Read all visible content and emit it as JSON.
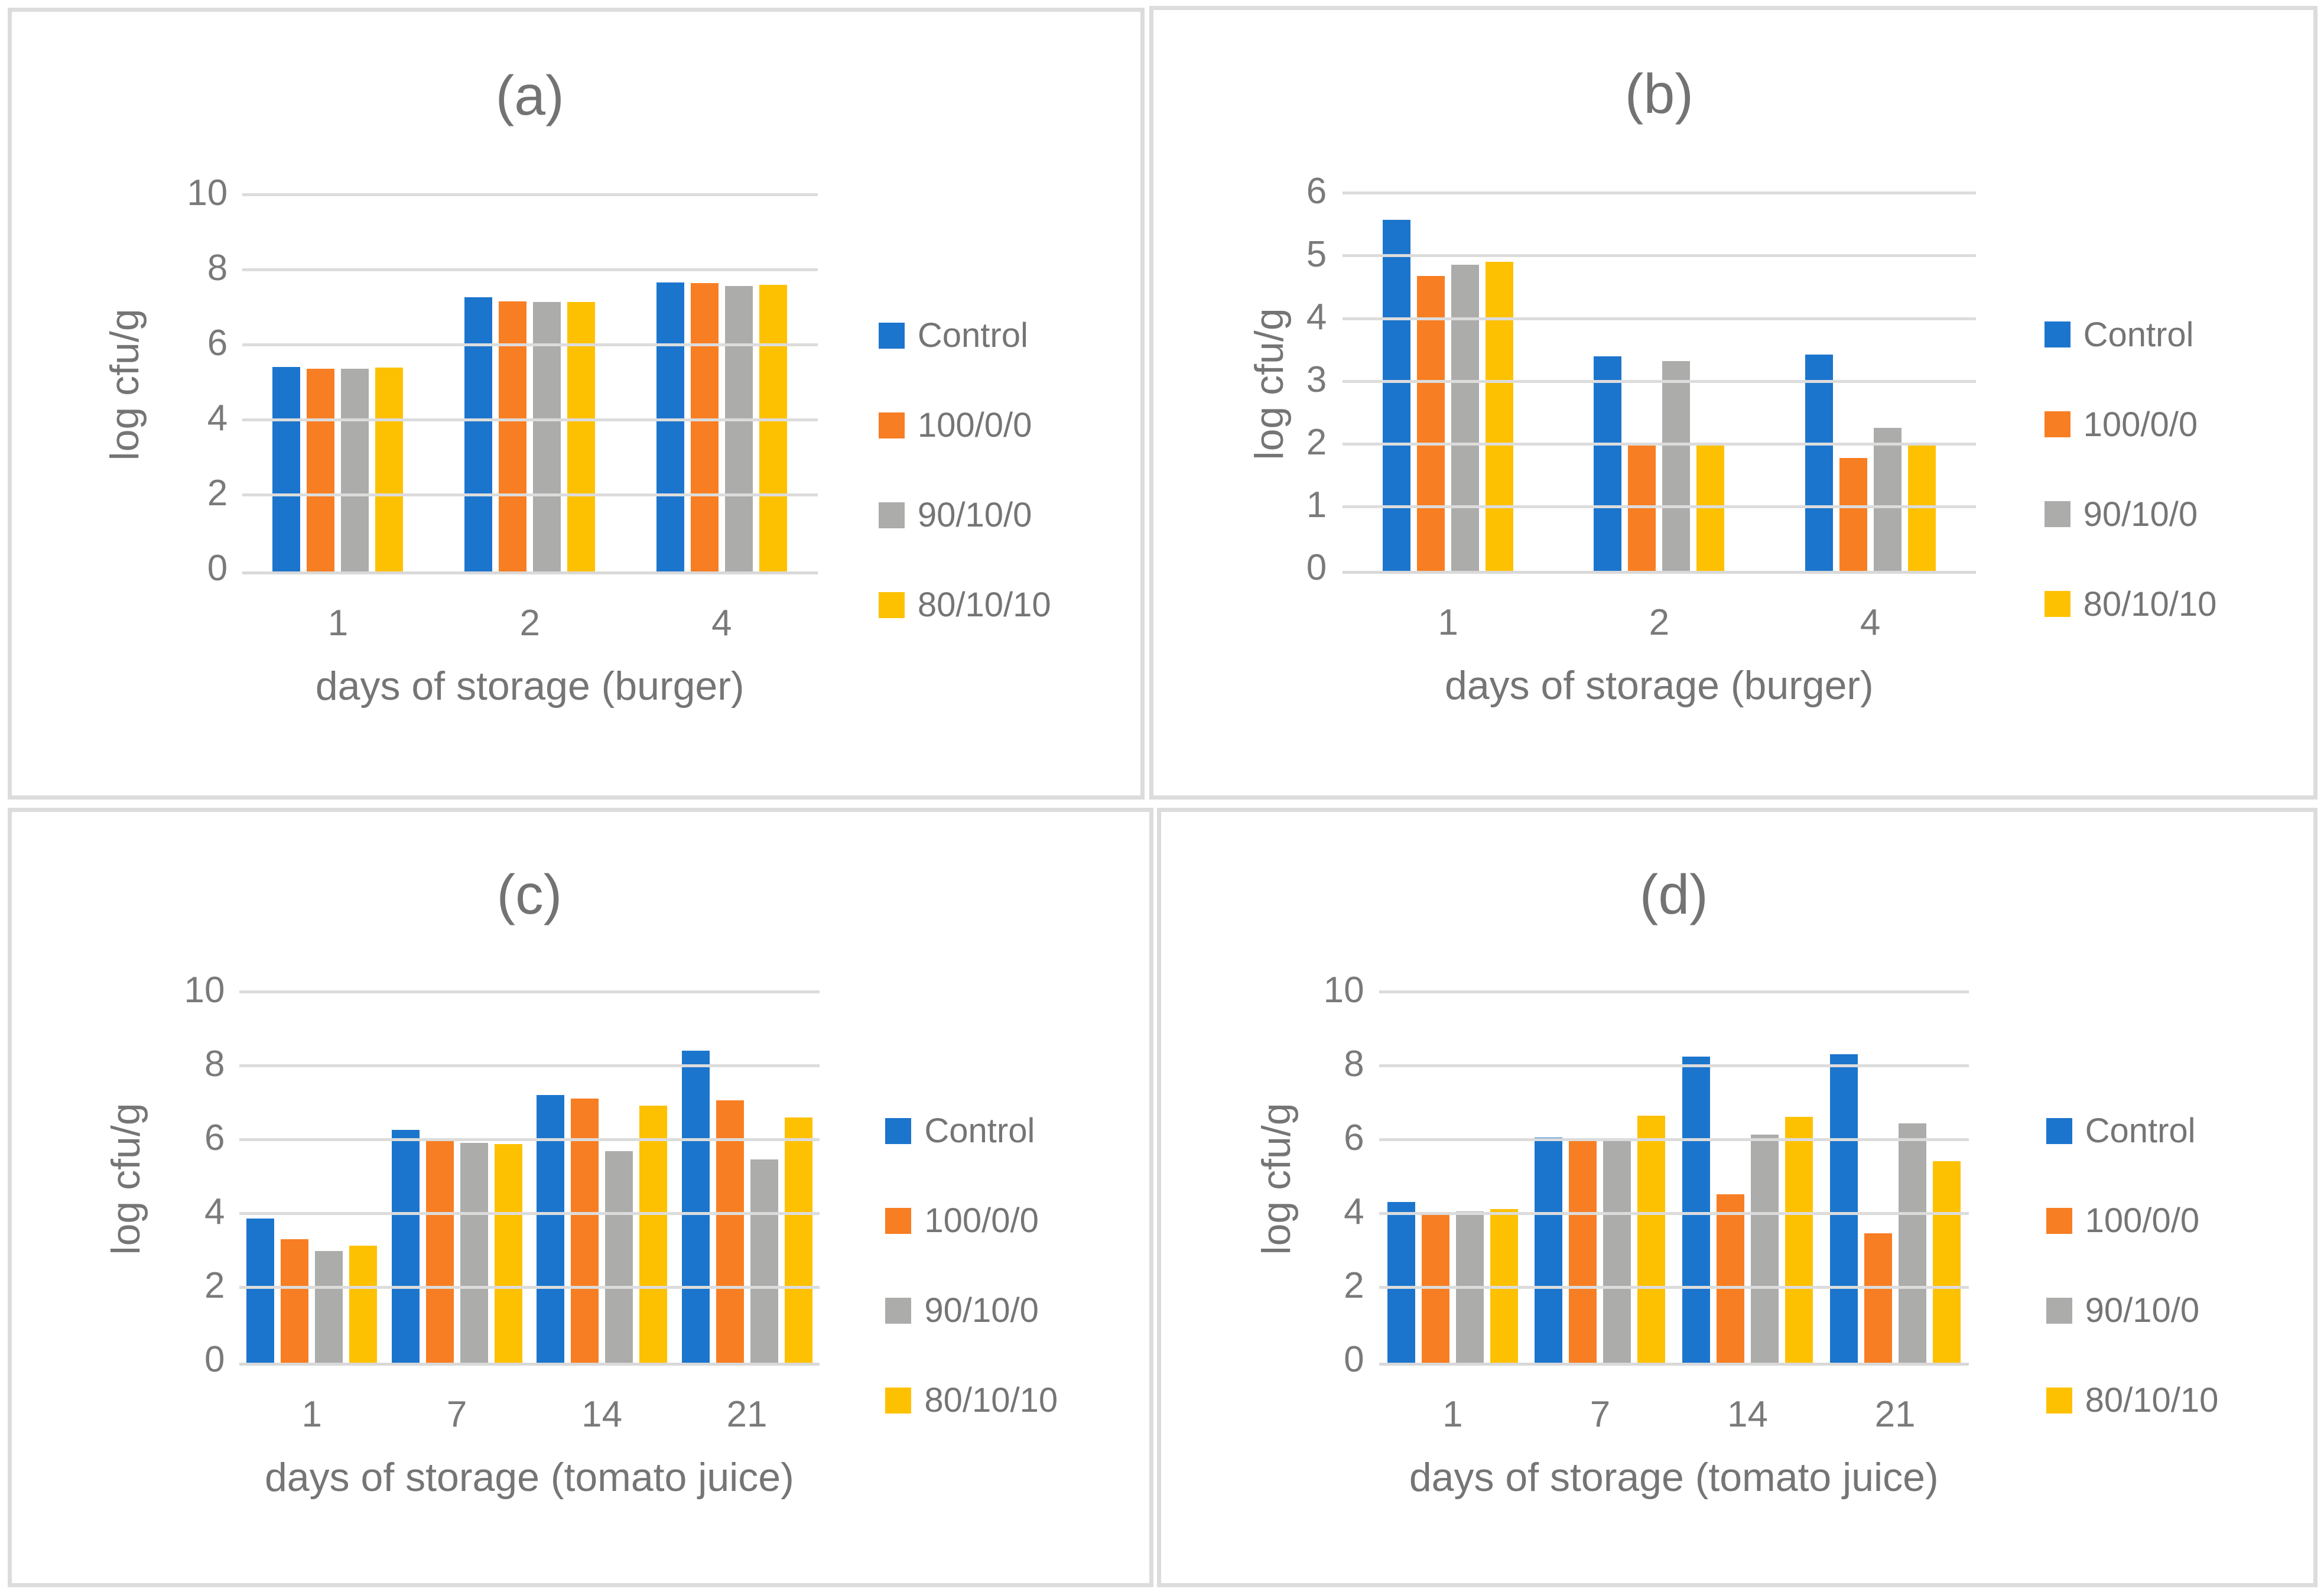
{
  "style": {
    "series_colors": {
      "control": "#1C75CD",
      "c100": "#F87E23",
      "c90": "#ACACAC",
      "c80": "#FEC101"
    },
    "gridline_color": "#DCDCDC",
    "panel_border_color": "#DCDCDC",
    "text_color": "#757575"
  },
  "chart_data": [
    {
      "type": "bar",
      "title": "(a)",
      "xlabel": "days of storage (burger)",
      "ylabel": "log cfu/g",
      "ylim": [
        0,
        10
      ],
      "ytick_step": 2,
      "grid": true,
      "legend_position": "right",
      "categories": [
        "1",
        "2",
        "4"
      ],
      "series": [
        {
          "name": "Control",
          "color": "#1C75CD",
          "values": [
            5.45,
            7.3,
            7.7
          ]
        },
        {
          "name": "100/0/0",
          "color": "#F87E23",
          "values": [
            5.4,
            7.2,
            7.68
          ]
        },
        {
          "name": "90/10/0",
          "color": "#ACACAB",
          "values": [
            5.4,
            7.17,
            7.6
          ]
        },
        {
          "name": "80/10/10",
          "color": "#FEC101",
          "values": [
            5.43,
            7.17,
            7.64
          ]
        }
      ]
    },
    {
      "type": "bar",
      "title": "(b)",
      "xlabel": "days of storage (burger)",
      "ylabel": "log cfu/g",
      "ylim": [
        0,
        6
      ],
      "ytick_step": 1,
      "grid": true,
      "legend_position": "right",
      "categories": [
        "1",
        "2",
        "4"
      ],
      "series": [
        {
          "name": "Control",
          "color": "#1C75CD",
          "values": [
            5.6,
            3.42,
            3.45
          ]
        },
        {
          "name": "100/0/0",
          "color": "#F87E23",
          "values": [
            4.7,
            2.0,
            1.8
          ]
        },
        {
          "name": "90/10/0",
          "color": "#ACACAB",
          "values": [
            4.88,
            3.35,
            2.28
          ]
        },
        {
          "name": "80/10/10",
          "color": "#FEC101",
          "values": [
            4.93,
            2.03,
            2.0
          ]
        }
      ]
    },
    {
      "type": "bar",
      "title": "(c)",
      "xlabel": "days of storage (tomato juice)",
      "ylabel": "log cfu/g",
      "ylim": [
        0,
        10
      ],
      "ytick_step": 2,
      "grid": true,
      "legend_position": "right",
      "categories": [
        "1",
        "7",
        "14",
        "21"
      ],
      "series": [
        {
          "name": "Control",
          "color": "#1C75CD",
          "values": [
            3.9,
            6.3,
            7.25,
            8.45
          ]
        },
        {
          "name": "100/0/0",
          "color": "#F87E23",
          "values": [
            3.35,
            6.05,
            7.15,
            7.1
          ]
        },
        {
          "name": "90/10/0",
          "color": "#ACACAB",
          "values": [
            3.02,
            5.95,
            5.73,
            5.5
          ]
        },
        {
          "name": "80/10/10",
          "color": "#FEC101",
          "values": [
            3.17,
            5.92,
            6.95,
            6.64
          ]
        }
      ]
    },
    {
      "type": "bar",
      "title": "(d)",
      "xlabel": "days of storage (tomato juice)",
      "ylabel": "log cfu/g",
      "ylim": [
        0,
        10
      ],
      "ytick_step": 2,
      "grid": true,
      "legend_position": "right",
      "categories": [
        "1",
        "7",
        "14",
        "21"
      ],
      "series": [
        {
          "name": "Control",
          "color": "#1C75CD",
          "values": [
            4.35,
            6.1,
            8.28,
            8.35
          ]
        },
        {
          "name": "100/0/0",
          "color": "#F87E23",
          "values": [
            4.0,
            6.05,
            4.55,
            3.5
          ]
        },
        {
          "name": "90/10/0",
          "color": "#ACACAB",
          "values": [
            4.1,
            6.0,
            6.18,
            6.47
          ]
        },
        {
          "name": "80/10/10",
          "color": "#FEC101",
          "values": [
            4.15,
            6.68,
            6.65,
            5.45
          ]
        }
      ]
    }
  ]
}
